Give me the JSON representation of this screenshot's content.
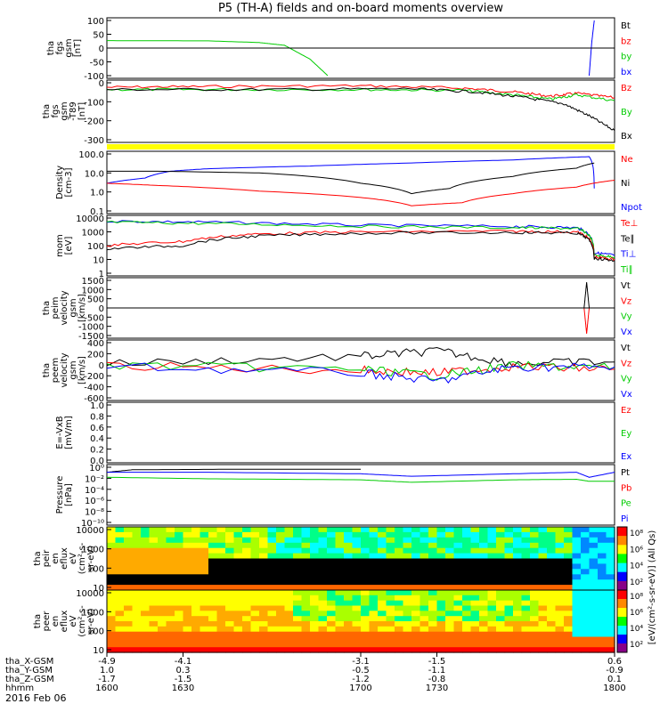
{
  "title": "P5 (TH-A) fields and on-board moments overview",
  "date": "2016 Feb 06",
  "colors": {
    "black": "#000000",
    "red": "#ff0000",
    "green": "#00cc00",
    "blue": "#0000ff",
    "yellow": "#ffff00"
  },
  "chart_data": {
    "type": "line",
    "x_range": [
      "1600",
      "1800"
    ],
    "time_ticks": [
      "1600",
      "1630",
      "1700",
      "1730",
      "1800"
    ],
    "ephemeris_rows": [
      {
        "label": "tha_X-GSM",
        "values": [
          "-4.9",
          "-4.1",
          "-3.1",
          "-1.5",
          "0.6"
        ]
      },
      {
        "label": "tha_Y-GSM",
        "values": [
          "1.0",
          "0.3",
          "-0.5",
          "-1.1",
          "-0.9"
        ]
      },
      {
        "label": "tha_Z-GSM",
        "values": [
          "-1.7",
          "-1.5",
          "-1.2",
          "-0.8",
          "0.1"
        ]
      },
      {
        "label": "hhmm",
        "values": [
          "1600",
          "1630",
          "1700",
          "1730",
          "1800"
        ]
      }
    ],
    "panels": [
      {
        "ylabel": [
          "tha",
          "fgs",
          "gsm",
          "[nT]"
        ],
        "ticks": [
          "100",
          "50",
          "0",
          "-50",
          "-100"
        ],
        "ylim": [
          -100,
          100
        ],
        "legend": [
          {
            "text": "Bt",
            "color": "black"
          },
          {
            "text": "bz",
            "color": "red"
          },
          {
            "text": "by",
            "color": "green"
          },
          {
            "text": "bx",
            "color": "blue"
          }
        ],
        "series": [
          {
            "color": "green",
            "x": [
              1600,
              1640,
              1660,
              1670,
              1680,
              1687
            ],
            "y": [
              27,
              26,
              20,
              10,
              -40,
              -100
            ]
          },
          {
            "color": "blue",
            "x": [
              1790,
              1791,
              1792
            ],
            "y": [
              -100,
              20,
              100
            ]
          }
        ]
      },
      {
        "ylabel": [
          "tha",
          "fgs",
          "gsm",
          "-T89",
          "[nT]"
        ],
        "ticks": [
          "0",
          "-100",
          "-200",
          "-300"
        ],
        "ylim": [
          -340,
          40
        ],
        "legend": [
          {
            "text": "Bz",
            "color": "red"
          },
          {
            "text": "By",
            "color": "green"
          },
          {
            "text": "Bx",
            "color": "black"
          }
        ],
        "series": [
          {
            "color": "red",
            "x": [
              1600,
              1640,
              1700,
              1740,
              1760,
              1775,
              1785,
              1800
            ],
            "y": [
              10,
              15,
              20,
              5,
              -20,
              -50,
              -30,
              -60
            ]
          },
          {
            "color": "green",
            "x": [
              1600,
              1640,
              1700,
              1740,
              1760,
              1775,
              1785,
              1800
            ],
            "y": [
              -5,
              -5,
              -5,
              -10,
              -40,
              -70,
              -40,
              -80
            ]
          },
          {
            "color": "black",
            "x": [
              1600,
              1660,
              1720,
              1745,
              1765,
              1780,
              1790,
              1800
            ],
            "y": [
              -5,
              -5,
              0,
              -20,
              -60,
              -100,
              -180,
              -280
            ]
          }
        ]
      },
      {
        "type": "bar_flag",
        "color": "yellow"
      },
      {
        "ylabel": [
          "Density",
          "[cm-3]"
        ],
        "ticks": [
          "100.0",
          "10.0",
          "1.0",
          "0.1"
        ],
        "ylim": [
          0.05,
          100
        ],
        "log": true,
        "legend": [
          {
            "text": "Ne",
            "color": "red"
          },
          {
            "text": "Ni",
            "color": "black"
          },
          {
            "text": "Npot",
            "color": "blue"
          }
        ],
        "series": [
          {
            "color": "blue",
            "x": [
              1600,
              1615,
              1625,
              1640,
              1680,
              1720,
              1760,
              1790,
              1792
            ],
            "y": [
              2,
              4,
              10,
              14,
              20,
              30,
              45,
              70,
              1
            ]
          },
          {
            "color": "black",
            "x": [
              1600,
              1620,
              1660,
              1700,
              1720,
              1735,
              1760,
              1785,
              1792
            ],
            "y": [
              10,
              10,
              8,
              2,
              0.5,
              1,
              5,
              15,
              30
            ]
          },
          {
            "color": "red",
            "x": [
              1600,
              1620,
              1660,
              1700,
              1720,
              1740,
              1760,
              1785,
              1800
            ],
            "y": [
              2,
              1.5,
              0.7,
              0.3,
              0.1,
              0.15,
              0.5,
              1.2,
              3
            ]
          }
        ]
      },
      {
        "ylabel": [
          "mom",
          "[eV]"
        ],
        "ticks": [
          "10000",
          "1000",
          "100",
          "10",
          "1"
        ],
        "ylim": [
          1,
          10000
        ],
        "log": true,
        "legend": [
          {
            "text": "Te⊥",
            "color": "red"
          },
          {
            "text": "Te∥",
            "color": "black"
          },
          {
            "text": "Ti⊥",
            "color": "blue"
          },
          {
            "text": "Ti∥",
            "color": "green"
          }
        ],
        "series": [
          {
            "color": "blue",
            "x": [
              1600,
              1640,
              1700,
              1760,
              1785,
              1792,
              1800
            ],
            "y": [
              6000,
              5000,
              3000,
              2500,
              2000,
              30,
              20
            ]
          },
          {
            "color": "green",
            "x": [
              1600,
              1640,
              1700,
              1760,
              1785,
              1792,
              1800
            ],
            "y": [
              5000,
              4000,
              2500,
              2000,
              1800,
              20,
              15
            ]
          },
          {
            "color": "red",
            "x": [
              1600,
              1630,
              1660,
              1700,
              1760,
              1785,
              1792,
              1800
            ],
            "y": [
              100,
              200,
              700,
              1000,
              1100,
              1000,
              15,
              10
            ]
          },
          {
            "color": "black",
            "x": [
              1600,
              1630,
              1660,
              1700,
              1760,
              1785,
              1792,
              1800
            ],
            "y": [
              60,
              100,
              500,
              800,
              900,
              800,
              12,
              8
            ]
          }
        ]
      },
      {
        "ylabel": [
          "tha",
          "peim",
          "velocity",
          "gsm",
          "[km/s]"
        ],
        "ticks": [
          "1500",
          "1000",
          "500",
          "0",
          "-500",
          "-1000",
          "-1500"
        ],
        "ylim": [
          -1500,
          1500
        ],
        "legend": [
          {
            "text": "Vt",
            "color": "black"
          },
          {
            "text": "Vz",
            "color": "red"
          },
          {
            "text": "Vy",
            "color": "green"
          },
          {
            "text": "Vx",
            "color": "blue"
          }
        ],
        "series": [
          {
            "color": "black",
            "x": [
              1600,
              1788,
              1789,
              1790
            ],
            "y": [
              0,
              0,
              1400,
              0
            ]
          },
          {
            "color": "red",
            "x": [
              1600,
              1788,
              1789,
              1790
            ],
            "y": [
              0,
              0,
              -1400,
              0
            ]
          }
        ]
      },
      {
        "ylabel": [
          "tha",
          "peem",
          "velocity",
          "gsm",
          "[km/s]"
        ],
        "ticks": [
          "400",
          "200",
          "0",
          "-200",
          "-400",
          "-600"
        ],
        "ylim": [
          -600,
          400
        ],
        "legend": [
          {
            "text": "Vt",
            "color": "black"
          },
          {
            "text": "Vz",
            "color": "red"
          },
          {
            "text": "Vy",
            "color": "green"
          },
          {
            "text": "Vx",
            "color": "blue"
          }
        ],
        "series": [
          {
            "color": "black",
            "x": [
              1600,
              1700,
              1730,
              1760,
              1800
            ],
            "y": [
              20,
              150,
              250,
              30,
              50
            ]
          },
          {
            "color": "red",
            "x": [
              1600,
              1700,
              1730,
              1760,
              1800
            ],
            "y": [
              -20,
              -100,
              -150,
              -30,
              -80
            ]
          },
          {
            "color": "green",
            "x": [
              1600,
              1700,
              1730,
              1760,
              1800
            ],
            "y": [
              -10,
              -80,
              -200,
              -20,
              -50
            ]
          },
          {
            "color": "blue",
            "x": [
              1600,
              1700,
              1730,
              1760,
              1800
            ],
            "y": [
              -30,
              -150,
              -300,
              -40,
              -40
            ]
          }
        ]
      },
      {
        "ylabel": [
          "E=-VxB",
          "[mV/m]"
        ],
        "ticks": [
          "1.0",
          "0.8",
          "0.6",
          "0.4",
          "0.2",
          "0.0"
        ],
        "ylim": [
          0,
          1
        ],
        "legend": [
          {
            "text": "Ez",
            "color": "red"
          },
          {
            "text": "Ey",
            "color": "green"
          },
          {
            "text": "Ex",
            "color": "blue"
          }
        ],
        "series": []
      },
      {
        "ylabel": [
          "Pressure",
          "[nPa]"
        ],
        "ticks": [
          "10⁰",
          "10⁻²",
          "10⁻⁴",
          "10⁻⁶",
          "10⁻⁸",
          "10⁻¹⁰"
        ],
        "ylim": [
          -10,
          1
        ],
        "legend": [
          {
            "text": "Pt",
            "color": "black"
          },
          {
            "text": "Pb",
            "color": "red"
          },
          {
            "text": "Pe",
            "color": "green"
          },
          {
            "text": "Pi",
            "color": "blue"
          }
        ],
        "series": [
          {
            "color": "black",
            "x": [
              1600,
              1610,
              1650,
              1700
            ],
            "y": [
              0,
              0.5,
              0.6,
              0.6
            ]
          },
          {
            "color": "blue",
            "x": [
              1600,
              1640,
              1700,
              1720,
              1760,
              1785,
              1790,
              1800
            ],
            "y": [
              0,
              0,
              -0.3,
              -0.8,
              -0.3,
              0,
              -1,
              0
            ]
          },
          {
            "color": "green",
            "x": [
              1600,
              1640,
              1700,
              1720,
              1760,
              1785,
              1790,
              1800
            ],
            "y": [
              -1,
              -1.3,
              -1.5,
              -2,
              -1.5,
              -1.4,
              -1.8,
              -1.8
            ]
          }
        ]
      },
      {
        "type": "spectrogram",
        "ylabel": [
          "tha",
          "peir",
          "en",
          "eflux",
          "eV",
          "(cm²-s-",
          "sr-eV)"
        ],
        "ticks": [
          "10000",
          "1000",
          "100",
          "10"
        ],
        "colorbar_ticks": [
          "10⁸",
          "10⁶",
          "10⁴",
          "10²"
        ]
      },
      {
        "type": "spectrogram",
        "ylabel": [
          "tha",
          "peer",
          "en",
          "eflux",
          "eV",
          "(cm²-s-",
          "sr-eV)"
        ],
        "ticks": [
          "10000",
          "1000",
          "100",
          "10"
        ],
        "colorbar_ticks": [
          "10⁸",
          "10⁶",
          "10⁴",
          "10²"
        ]
      }
    ],
    "colorbar_label": "[eV/(cm²-s-sr-eV)] (All Qs)"
  }
}
